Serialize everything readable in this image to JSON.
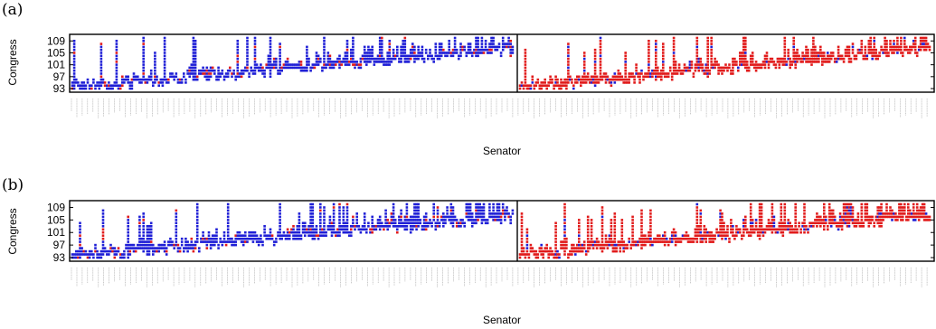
{
  "chart_data": [
    {
      "type": "scatter",
      "panel_label": "(a)",
      "xlabel": "Senator",
      "ylabel": "Congress",
      "yticks": [
        "93",
        "97",
        "101",
        "105",
        "109"
      ],
      "ylim": [
        93,
        110
      ],
      "series": [],
      "colors": {
        "blue": "#1f1fd6",
        "red": "#e11b1b",
        "frame": "#000000"
      },
      "grid": false,
      "seed": 7
    },
    {
      "type": "scatter",
      "panel_label": "(b)",
      "xlabel": "Senator",
      "ylabel": "Congress",
      "yticks": [
        "93",
        "97",
        "101",
        "105",
        "109"
      ],
      "ylim": [
        93,
        110
      ],
      "series": [],
      "colors": {
        "blue": "#1f1fd6",
        "red": "#e11b1b",
        "frame": "#000000"
      },
      "grid": false,
      "seed": 11
    }
  ]
}
